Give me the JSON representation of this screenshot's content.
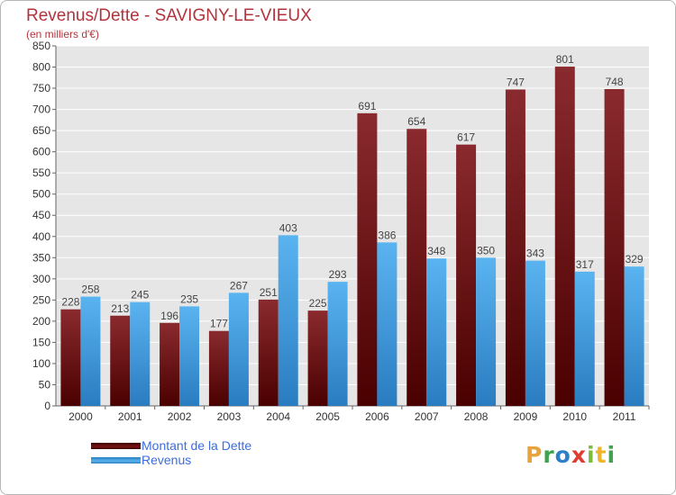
{
  "title": "Revenus/Dette - SAVIGNY-LE-VIEUX",
  "subtitle": "(en milliers d'€)",
  "logo": {
    "text": "Proxiti",
    "letters": [
      "P",
      "r",
      "o",
      "x",
      "i",
      "t",
      "i"
    ],
    "colors": [
      "#e8a33b",
      "#3fa34d",
      "#2d7fc9",
      "#e03c31",
      "#7cbb3c",
      "#f0b429",
      "#3fa34d"
    ]
  },
  "colors": {
    "dette": "#7a1418",
    "revenus": "#3d9de0",
    "title": "#b1343c",
    "legend_text": "#3b6de0"
  },
  "chart_data": {
    "type": "bar",
    "title": "Revenus/Dette - SAVIGNY-LE-VIEUX",
    "ylabel": "(en milliers d'€)",
    "categories": [
      "2000",
      "2001",
      "2002",
      "2003",
      "2004",
      "2005",
      "2006",
      "2007",
      "2008",
      "2009",
      "2010",
      "2011"
    ],
    "series": [
      {
        "name": "Montant de la Dette",
        "values": [
          228,
          213,
          196,
          177,
          251,
          225,
          691,
          654,
          617,
          747,
          801,
          748
        ]
      },
      {
        "name": "Revenus",
        "values": [
          258,
          245,
          235,
          267,
          403,
          293,
          386,
          348,
          350,
          343,
          317,
          329
        ]
      }
    ],
    "ylim": [
      0,
      850
    ],
    "yticks": [
      0,
      50,
      100,
      150,
      200,
      250,
      300,
      350,
      400,
      450,
      500,
      550,
      600,
      650,
      700,
      750,
      800,
      850
    ],
    "grid": true,
    "legend": "bottom-left"
  }
}
